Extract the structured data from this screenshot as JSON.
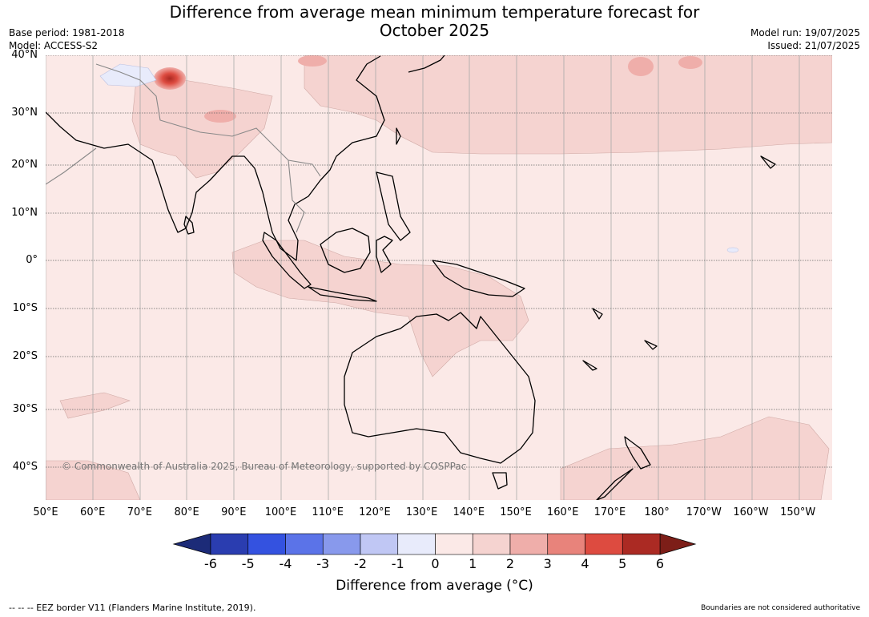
{
  "title_line1": "Difference from average mean minimum temperature forecast for",
  "title_line2": "October 2025",
  "base_period": "Base period: 1981-2018",
  "model": "Model: ACCESS-S2",
  "model_run": "Model run: 19/07/2025",
  "issued": "Issued: 21/07/2025",
  "lat_labels": [
    "40°N",
    "30°N",
    "20°N",
    "10°N",
    "0°",
    "10°S",
    "20°S",
    "30°S",
    "40°S"
  ],
  "lon_labels": [
    "50°E",
    "60°E",
    "70°E",
    "80°E",
    "90°E",
    "100°E",
    "110°E",
    "120°E",
    "130°E",
    "140°E",
    "150°E",
    "160°E",
    "170°E",
    "180°",
    "170°W",
    "160°W",
    "150°W"
  ],
  "copyright": "© Commonwealth of Australia 2025, Bureau of Meteorology, supported by COSPPac",
  "colorbar": {
    "ticks": [
      "-6",
      "-5",
      "-4",
      "-3",
      "-2",
      "-1",
      "0",
      "1",
      "2",
      "3",
      "4",
      "5",
      "6"
    ],
    "colors": [
      "#1c2b78",
      "#2a3db0",
      "#3452e0",
      "#5b73e8",
      "#8899ec",
      "#c0c7f4",
      "#e8ebfb",
      "#fbe9e7",
      "#f5d3d0",
      "#efaeaa",
      "#e8837b",
      "#dd4b40",
      "#ab2a23",
      "#7d1e18"
    ],
    "title": "Difference from average (°C)"
  },
  "footer_left": "--  --  -- EEZ border V11 (Flanders Marine Institute, 2019).",
  "footer_right": "Boundaries are not considered authoritative"
}
